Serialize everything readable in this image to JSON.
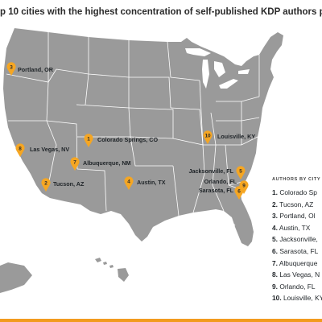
{
  "title": "p 10 cities with the highest concentration of self-published KDP authors per c",
  "colors": {
    "land": "#9a9a9a",
    "lakes": "#ffffff",
    "pin": "#f5a623",
    "accent": "#f29b1e"
  },
  "icons": {
    "pin": "map-pin-icon"
  },
  "pins": [
    {
      "rank": "1",
      "label": "Colorado Springs, CO"
    },
    {
      "rank": "2",
      "label": "Tucson, AZ"
    },
    {
      "rank": "3",
      "label": "Portland, OR"
    },
    {
      "rank": "4",
      "label": "Austin, TX"
    },
    {
      "rank": "5",
      "label": "Jacksonville, FL"
    },
    {
      "rank": "6",
      "label": "Sarasota, FL"
    },
    {
      "rank": "7",
      "label": "Albuquerque, NM"
    },
    {
      "rank": "8",
      "label": "Las Vegas, NV"
    },
    {
      "rank": "9",
      "label": "Orlando, FL"
    },
    {
      "rank": "10",
      "label": "Louisville, KY"
    }
  ],
  "legend": {
    "heading": "AUTHORS BY CITY",
    "items": [
      {
        "num": "1.",
        "text": "Colorado Sp"
      },
      {
        "num": "2.",
        "text": "Tucson, AZ"
      },
      {
        "num": "3.",
        "text": "Portland, Ol"
      },
      {
        "num": "4.",
        "text": "Austin, TX"
      },
      {
        "num": "5.",
        "text": "Jacksonville,"
      },
      {
        "num": "6.",
        "text": "Sarasota, FL"
      },
      {
        "num": "7.",
        "text": "Albuquerque"
      },
      {
        "num": "8.",
        "text": "Las Vegas, N"
      },
      {
        "num": "9.",
        "text": "Orlando, FL"
      },
      {
        "num": "10.",
        "text": "Louisville, KY"
      }
    ]
  }
}
